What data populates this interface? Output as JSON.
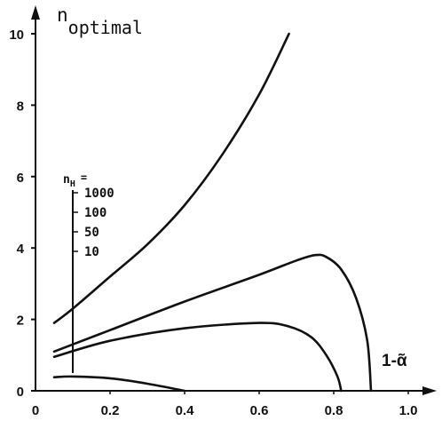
{
  "chart_data": {
    "type": "line",
    "ylabel_main": "n",
    "ylabel_sub": "optimal",
    "xlabel": "1-ᾶ",
    "xlim": [
      0,
      1.0
    ],
    "ylim": [
      0,
      10
    ],
    "xticks": [
      {
        "v": 0,
        "label": "0"
      },
      {
        "v": 0.2,
        "label": "0.2"
      },
      {
        "v": 0.4,
        "label": "0.4"
      },
      {
        "v": 0.6,
        "label": "0.6"
      },
      {
        "v": 0.8,
        "label": "0.8"
      },
      {
        "v": 1.0,
        "label": "1.0"
      }
    ],
    "yticks": [
      {
        "v": 0,
        "label": "0"
      },
      {
        "v": 2,
        "label": "2"
      },
      {
        "v": 4,
        "label": "4"
      },
      {
        "v": 6,
        "label": "6"
      },
      {
        "v": 8,
        "label": "8"
      },
      {
        "v": 10,
        "label": "10"
      }
    ],
    "legend": {
      "title_main": "n",
      "title_sub": "H",
      "title_eq": "=",
      "entries": [
        "1000",
        "100",
        "50",
        "10"
      ]
    },
    "series": [
      {
        "name": "1000",
        "points": [
          [
            0.05,
            1.9
          ],
          [
            0.1,
            2.3
          ],
          [
            0.2,
            3.2
          ],
          [
            0.3,
            4.1
          ],
          [
            0.4,
            5.2
          ],
          [
            0.5,
            6.6
          ],
          [
            0.6,
            8.3
          ],
          [
            0.68,
            10.0
          ]
        ]
      },
      {
        "name": "100",
        "points": [
          [
            0.05,
            1.1
          ],
          [
            0.2,
            1.7
          ],
          [
            0.4,
            2.5
          ],
          [
            0.6,
            3.25
          ],
          [
            0.7,
            3.65
          ],
          [
            0.75,
            3.8
          ],
          [
            0.78,
            3.75
          ],
          [
            0.82,
            3.4
          ],
          [
            0.86,
            2.6
          ],
          [
            0.89,
            1.4
          ],
          [
            0.9,
            0.0
          ]
        ]
      },
      {
        "name": "50",
        "points": [
          [
            0.05,
            0.95
          ],
          [
            0.2,
            1.4
          ],
          [
            0.4,
            1.75
          ],
          [
            0.6,
            1.9
          ],
          [
            0.68,
            1.8
          ],
          [
            0.74,
            1.5
          ],
          [
            0.78,
            1.0
          ],
          [
            0.81,
            0.4
          ],
          [
            0.82,
            0.0
          ]
        ]
      },
      {
        "name": "10",
        "points": [
          [
            0.05,
            0.38
          ],
          [
            0.1,
            0.4
          ],
          [
            0.2,
            0.35
          ],
          [
            0.3,
            0.2
          ],
          [
            0.4,
            0.0
          ]
        ]
      }
    ]
  }
}
